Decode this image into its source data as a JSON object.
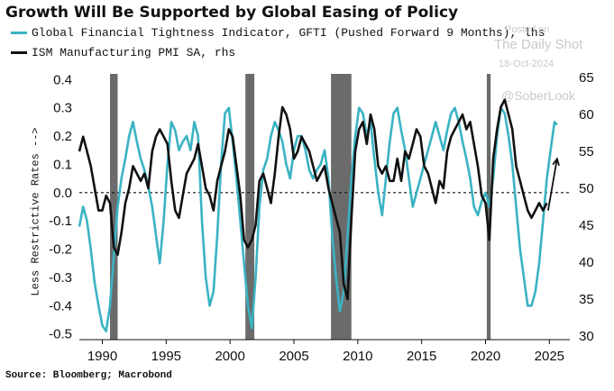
{
  "title": "Growth Will Be Supported by Global Easing of Policy",
  "source": "Source: Bloomberg; Macrobond",
  "watermark": {
    "posted_on": "Posted on",
    "site": "The Daily Shot",
    "date": "18-Oct-2024",
    "handle": "@SoberLook"
  },
  "colors": {
    "gfti": "#3ab3c3",
    "ism": "#111111",
    "recession": "#6b6b6b"
  },
  "chart_data": {
    "type": "line",
    "title": "Growth Will Be Supported by Global Easing of Policy",
    "left_axis_label": "Less Restrictive Rates -->",
    "x_ticks": [
      1990,
      1995,
      2000,
      2005,
      2010,
      2015,
      2020,
      2025
    ],
    "xlim": [
      1988.2,
      2026.6
    ],
    "left_axis": {
      "ylim": [
        -0.52,
        0.42
      ],
      "ticks": [
        0.4,
        0.3,
        0.2,
        0.1,
        0.0,
        -0.1,
        -0.2,
        -0.3,
        -0.4,
        -0.5
      ],
      "tick_labels": [
        "0.4",
        "0.3",
        "0.2",
        "0.1",
        "0.0",
        "-0.1",
        "-0.2",
        "-0.3",
        "-0.4",
        "-0.5"
      ]
    },
    "right_axis": {
      "ylim": [
        29.5,
        65.5
      ],
      "ticks": [
        65,
        60,
        55,
        50,
        45,
        40,
        35,
        30
      ],
      "tick_labels": [
        "65",
        "60",
        "55",
        "50",
        "45",
        "40",
        "35",
        "30"
      ]
    },
    "reference_line": {
      "axis": "left",
      "value": 0.0,
      "style": "dashed"
    },
    "recessions": [
      [
        1990.6,
        1991.2
      ],
      [
        2001.2,
        2001.9
      ],
      [
        2007.9,
        2009.5
      ],
      [
        2020.1,
        2020.4
      ]
    ],
    "series": [
      {
        "name": "Global Financial Tightness Indicator, GFTI (Pushed Forward 9 Months), lhs",
        "axis": "left",
        "color": "#3ab3c3",
        "x": [
          1988.2,
          1988.5,
          1988.8,
          1989.1,
          1989.4,
          1989.7,
          1990.0,
          1990.3,
          1990.6,
          1990.9,
          1991.2,
          1991.5,
          1991.8,
          1992.1,
          1992.4,
          1992.7,
          1993.0,
          1993.3,
          1993.6,
          1993.9,
          1994.2,
          1994.5,
          1994.8,
          1995.1,
          1995.4,
          1995.7,
          1996.0,
          1996.3,
          1996.6,
          1996.9,
          1997.2,
          1997.5,
          1997.8,
          1998.1,
          1998.4,
          1998.7,
          1999.0,
          1999.3,
          1999.6,
          1999.9,
          2000.2,
          2000.5,
          2000.8,
          2001.1,
          2001.4,
          2001.7,
          2002.0,
          2002.3,
          2002.6,
          2002.9,
          2003.2,
          2003.5,
          2003.8,
          2004.1,
          2004.4,
          2004.7,
          2005.0,
          2005.3,
          2005.6,
          2005.9,
          2006.2,
          2006.5,
          2006.8,
          2007.1,
          2007.4,
          2007.7,
          2008.0,
          2008.3,
          2008.6,
          2008.9,
          2009.2,
          2009.5,
          2009.8,
          2010.1,
          2010.4,
          2010.7,
          2011.0,
          2011.3,
          2011.6,
          2011.9,
          2012.2,
          2012.5,
          2012.8,
          2013.1,
          2013.4,
          2013.7,
          2014.0,
          2014.3,
          2014.6,
          2014.9,
          2015.2,
          2015.5,
          2015.8,
          2016.1,
          2016.4,
          2016.7,
          2017.0,
          2017.3,
          2017.6,
          2017.9,
          2018.2,
          2018.5,
          2018.8,
          2019.1,
          2019.4,
          2019.7,
          2020.0,
          2020.3,
          2020.6,
          2020.9,
          2021.2,
          2021.5,
          2021.8,
          2022.1,
          2022.4,
          2022.7,
          2023.0,
          2023.3,
          2023.6,
          2023.9,
          2024.2,
          2024.5,
          2024.8,
          2025.1,
          2025.4,
          2025.6
        ],
        "values": [
          -0.12,
          -0.05,
          -0.1,
          -0.2,
          -0.32,
          -0.4,
          -0.47,
          -0.49,
          -0.4,
          -0.22,
          -0.05,
          0.05,
          0.12,
          0.2,
          0.25,
          0.18,
          0.12,
          0.08,
          0.02,
          -0.05,
          -0.15,
          -0.25,
          -0.1,
          0.1,
          0.25,
          0.22,
          0.15,
          0.18,
          0.2,
          0.15,
          0.25,
          0.2,
          -0.1,
          -0.3,
          -0.4,
          -0.35,
          -0.15,
          0.1,
          0.28,
          0.3,
          0.18,
          0.05,
          -0.1,
          -0.25,
          -0.4,
          -0.48,
          -0.3,
          -0.05,
          0.08,
          0.12,
          0.2,
          0.25,
          0.22,
          0.18,
          0.1,
          0.05,
          0.15,
          0.2,
          0.2,
          0.15,
          0.08,
          0.05,
          0.08,
          0.1,
          0.15,
          0.05,
          -0.15,
          -0.3,
          -0.42,
          -0.35,
          -0.15,
          0.05,
          0.2,
          0.3,
          0.28,
          0.2,
          0.25,
          0.12,
          0.0,
          -0.08,
          0.05,
          0.18,
          0.28,
          0.3,
          0.22,
          0.15,
          0.05,
          -0.05,
          0.0,
          0.05,
          0.1,
          0.15,
          0.2,
          0.25,
          0.2,
          0.15,
          0.22,
          0.28,
          0.3,
          0.25,
          0.18,
          0.12,
          0.05,
          -0.05,
          -0.08,
          -0.03,
          0.0,
          -0.05,
          0.05,
          0.2,
          0.3,
          0.28,
          0.2,
          0.1,
          -0.05,
          -0.2,
          -0.3,
          -0.4,
          -0.4,
          -0.35,
          -0.25,
          -0.1,
          0.05,
          0.15,
          0.25,
          0.24
        ]
      },
      {
        "name": "ISM Manufacturing PMI SA, rhs",
        "axis": "right",
        "color": "#111111",
        "x": [
          1988.2,
          1988.5,
          1988.8,
          1989.1,
          1989.4,
          1989.7,
          1990.0,
          1990.3,
          1990.6,
          1990.9,
          1991.2,
          1991.5,
          1991.8,
          1992.1,
          1992.4,
          1992.7,
          1993.0,
          1993.3,
          1993.6,
          1993.9,
          1994.2,
          1994.5,
          1994.8,
          1995.1,
          1995.4,
          1995.7,
          1996.0,
          1996.3,
          1996.6,
          1996.9,
          1997.2,
          1997.5,
          1997.8,
          1998.1,
          1998.4,
          1998.7,
          1999.0,
          1999.3,
          1999.6,
          1999.9,
          2000.2,
          2000.5,
          2000.8,
          2001.1,
          2001.4,
          2001.7,
          2002.0,
          2002.3,
          2002.6,
          2002.9,
          2003.2,
          2003.5,
          2003.8,
          2004.1,
          2004.4,
          2004.7,
          2005.0,
          2005.3,
          2005.6,
          2005.9,
          2006.2,
          2006.5,
          2006.8,
          2007.1,
          2007.4,
          2007.7,
          2008.0,
          2008.3,
          2008.6,
          2008.9,
          2009.2,
          2009.5,
          2009.8,
          2010.1,
          2010.4,
          2010.7,
          2011.0,
          2011.3,
          2011.6,
          2011.9,
          2012.2,
          2012.5,
          2012.8,
          2013.1,
          2013.4,
          2013.7,
          2014.0,
          2014.3,
          2014.6,
          2014.9,
          2015.2,
          2015.5,
          2015.8,
          2016.1,
          2016.4,
          2016.7,
          2017.0,
          2017.3,
          2017.6,
          2017.9,
          2018.2,
          2018.5,
          2018.8,
          2019.1,
          2019.4,
          2019.7,
          2020.0,
          2020.3,
          2020.6,
          2020.9,
          2021.2,
          2021.5,
          2021.8,
          2022.1,
          2022.4,
          2022.7,
          2023.0,
          2023.3,
          2023.6,
          2023.9,
          2024.2,
          2024.5,
          2024.8
        ],
        "values": [
          55,
          57,
          55,
          53,
          50,
          47,
          47,
          49,
          48,
          42,
          41,
          44,
          48,
          50,
          53,
          52,
          51,
          52,
          50,
          55,
          57,
          58,
          57,
          56,
          51,
          47,
          46,
          49,
          52,
          53,
          54,
          56,
          53,
          50,
          49,
          47,
          51,
          53,
          55,
          58,
          57,
          53,
          49,
          43,
          42,
          43,
          45,
          51,
          52,
          50,
          48,
          52,
          57,
          61,
          60,
          58,
          54,
          55,
          57,
          56,
          55,
          53,
          51,
          52,
          53,
          50,
          48,
          46,
          44,
          37,
          35,
          46,
          55,
          58,
          59,
          56,
          60,
          58,
          53,
          52,
          53,
          51,
          51,
          54,
          51,
          55,
          54,
          56,
          58,
          57,
          53,
          52,
          50,
          48,
          51,
          50,
          55,
          57,
          58,
          59,
          60,
          58,
          59,
          56,
          53,
          49,
          48,
          43,
          54,
          58,
          61,
          62,
          60,
          58,
          53,
          51,
          49,
          47,
          46,
          47,
          48,
          47,
          48
        ]
      }
    ],
    "annotation": {
      "type": "arrow",
      "from": [
        2024.9,
        47
      ],
      "to": [
        2025.6,
        54
      ],
      "axis": "right"
    }
  }
}
